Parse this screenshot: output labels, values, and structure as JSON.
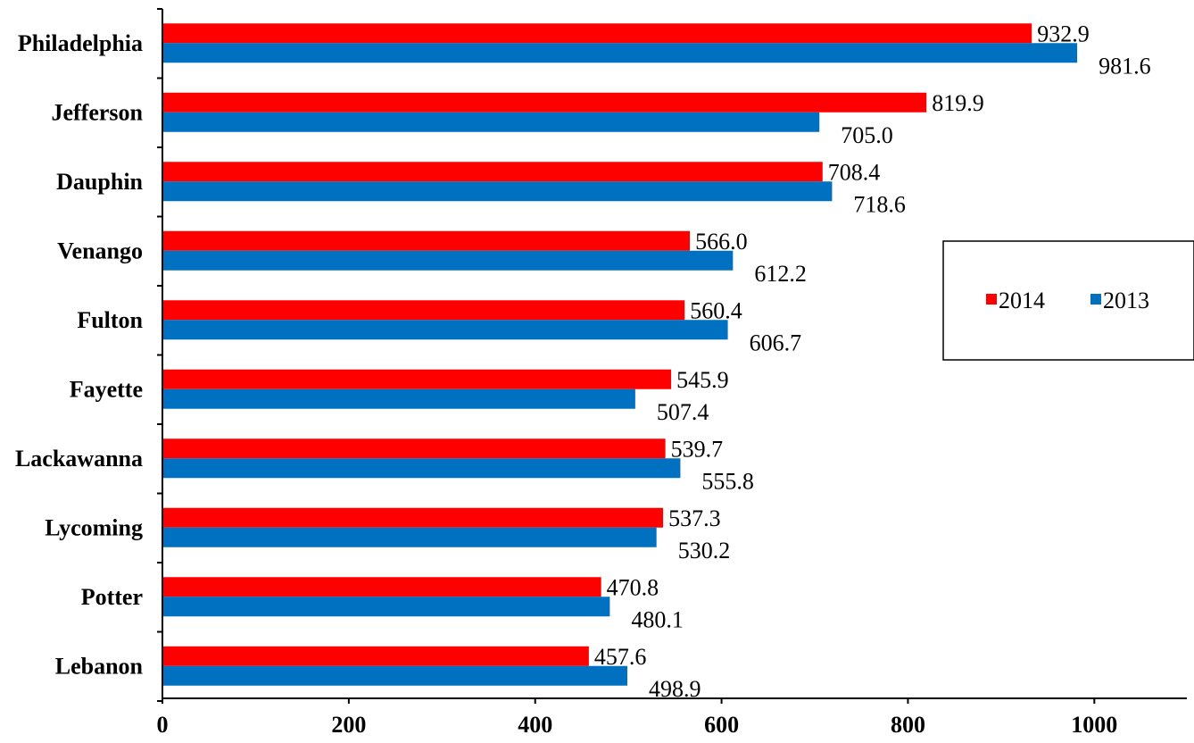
{
  "chart_data": {
    "type": "bar",
    "orientation": "horizontal",
    "categories": [
      "Philadelphia",
      "Jefferson",
      "Dauphin",
      "Venango",
      "Fulton",
      "Fayette",
      "Lackawanna",
      "Lycoming",
      "Potter",
      "Lebanon"
    ],
    "series": [
      {
        "name": "2014",
        "color": "#ff0000",
        "values": [
          932.9,
          819.9,
          708.4,
          566.0,
          560.4,
          545.9,
          539.7,
          537.3,
          470.8,
          457.6
        ],
        "labels": [
          "932.9",
          "819.9",
          "708.4",
          "566.0",
          "560.4",
          "545.9",
          "539.7",
          "537.3",
          "470.8",
          "457.6"
        ]
      },
      {
        "name": "2013",
        "color": "#0070c0",
        "values": [
          981.6,
          705.0,
          718.6,
          612.2,
          606.7,
          507.4,
          555.8,
          530.2,
          480.1,
          498.9
        ],
        "labels": [
          "981.6",
          "705.0",
          "718.6",
          "612.2",
          "606.7",
          "507.4",
          "555.8",
          "530.2",
          "480.1",
          "498.9"
        ]
      }
    ],
    "x_ticks": [
      "0",
      "200",
      "400",
      "600",
      "800",
      "1000"
    ],
    "xlim": [
      0,
      1100
    ],
    "title": "",
    "xlabel": "",
    "ylabel": "",
    "grid": false,
    "legend_position": "right"
  }
}
